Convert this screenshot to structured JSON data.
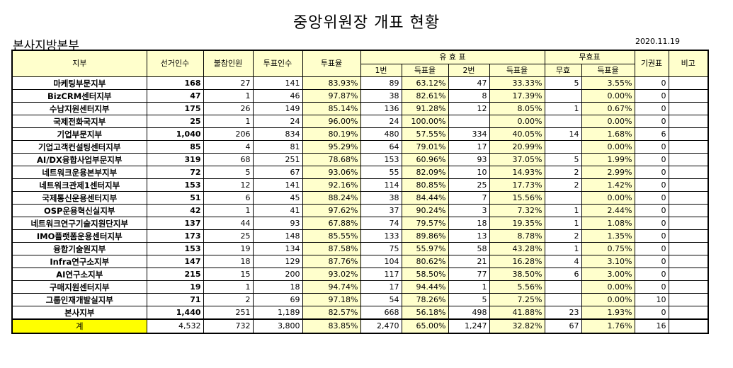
{
  "title": "중앙위원장 개표 현황",
  "subtitle": "본사지방본부",
  "date": "2020.11.19",
  "headers": {
    "branch": "지부",
    "electors": "선거인수",
    "absent": "불참인원",
    "voters": "투표인수",
    "turnout": "투표율",
    "valid": "유 효 표",
    "invalid": "무효표",
    "abstain": "기권표",
    "note": "비고",
    "c1": "1번",
    "c1rate": "득표율",
    "c2": "2번",
    "c2rate": "득표율",
    "inv": "무효",
    "invrate": "득표율"
  },
  "rows": [
    [
      "마케팅부문지부",
      "168",
      "27",
      "141",
      "83.93%",
      "89",
      "63.12%",
      "47",
      "33.33%",
      "5",
      "3.55%",
      "0",
      ""
    ],
    [
      "BizCRM센터지부",
      "47",
      "1",
      "46",
      "97.87%",
      "38",
      "82.61%",
      "8",
      "17.39%",
      "",
      "0.00%",
      "0",
      ""
    ],
    [
      "수납지원센터지부",
      "175",
      "26",
      "149",
      "85.14%",
      "136",
      "91.28%",
      "12",
      "8.05%",
      "1",
      "0.67%",
      "0",
      ""
    ],
    [
      "국제전화국지부",
      "25",
      "1",
      "24",
      "96.00%",
      "24",
      "100.00%",
      "",
      "0.00%",
      "",
      "0.00%",
      "0",
      ""
    ],
    [
      "기업부문지부",
      "1,040",
      "206",
      "834",
      "80.19%",
      "480",
      "57.55%",
      "334",
      "40.05%",
      "14",
      "1.68%",
      "6",
      ""
    ],
    [
      "기업고객컨설팅센터지부",
      "85",
      "4",
      "81",
      "95.29%",
      "64",
      "79.01%",
      "17",
      "20.99%",
      "",
      "0.00%",
      "0",
      ""
    ],
    [
      "AI/DX융합사업부문지부",
      "319",
      "68",
      "251",
      "78.68%",
      "153",
      "60.96%",
      "93",
      "37.05%",
      "5",
      "1.99%",
      "0",
      ""
    ],
    [
      "네트워크운용본부지부",
      "72",
      "5",
      "67",
      "93.06%",
      "55",
      "82.09%",
      "10",
      "14.93%",
      "2",
      "2.99%",
      "0",
      ""
    ],
    [
      "네트워크관제1센터지부",
      "153",
      "12",
      "141",
      "92.16%",
      "114",
      "80.85%",
      "25",
      "17.73%",
      "2",
      "1.42%",
      "0",
      ""
    ],
    [
      "국제통신운용센터지부",
      "51",
      "6",
      "45",
      "88.24%",
      "38",
      "84.44%",
      "7",
      "15.56%",
      "",
      "0.00%",
      "0",
      ""
    ],
    [
      "OSP운용혁신실지부",
      "42",
      "1",
      "41",
      "97.62%",
      "37",
      "90.24%",
      "3",
      "7.32%",
      "1",
      "2.44%",
      "0",
      ""
    ],
    [
      "네트워크연구기술지원단지부",
      "137",
      "44",
      "93",
      "67.88%",
      "74",
      "79.57%",
      "18",
      "19.35%",
      "1",
      "1.08%",
      "0",
      ""
    ],
    [
      "IMO플랫폼운용센터지부",
      "173",
      "25",
      "148",
      "85.55%",
      "133",
      "89.86%",
      "13",
      "8.78%",
      "2",
      "1.35%",
      "0",
      ""
    ],
    [
      "융합기술원지부",
      "153",
      "19",
      "134",
      "87.58%",
      "75",
      "55.97%",
      "58",
      "43.28%",
      "1",
      "0.75%",
      "0",
      ""
    ],
    [
      "Infra연구소지부",
      "147",
      "18",
      "129",
      "87.76%",
      "104",
      "80.62%",
      "21",
      "16.28%",
      "4",
      "3.10%",
      "0",
      ""
    ],
    [
      "AI연구소지부",
      "215",
      "15",
      "200",
      "93.02%",
      "117",
      "58.50%",
      "77",
      "38.50%",
      "6",
      "3.00%",
      "0",
      ""
    ],
    [
      "구매지원센터지부",
      "19",
      "1",
      "18",
      "94.74%",
      "17",
      "94.44%",
      "1",
      "5.56%",
      "",
      "0.00%",
      "0",
      ""
    ],
    [
      "그룹인재개발실지부",
      "71",
      "2",
      "69",
      "97.18%",
      "54",
      "78.26%",
      "5",
      "7.25%",
      "",
      "0.00%",
      "10",
      ""
    ],
    [
      "본사지부",
      "1,440",
      "251",
      "1,189",
      "82.57%",
      "668",
      "56.18%",
      "498",
      "41.88%",
      "23",
      "1.93%",
      "0",
      ""
    ]
  ],
  "total": [
    "계",
    "4,532",
    "732",
    "3,800",
    "83.85%",
    "2,470",
    "65.00%",
    "1,247",
    "32.82%",
    "67",
    "1.76%",
    "16",
    ""
  ]
}
